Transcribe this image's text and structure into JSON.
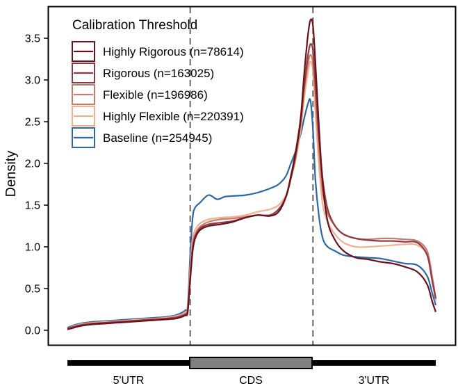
{
  "chart_data": {
    "type": "line",
    "ylabel": "Density",
    "xlabel": "",
    "xlim": [
      0,
      3
    ],
    "ylim": [
      -0.1,
      3.84
    ],
    "y_ticks": [
      0.0,
      0.5,
      1.0,
      1.5,
      2.0,
      2.5,
      3.0,
      3.5
    ],
    "y_tick_labels": [
      "0.0",
      "0.5",
      "1.0",
      "1.5",
      "2.0",
      "2.5",
      "3.0",
      "3.5"
    ],
    "vlines": [
      1,
      2
    ],
    "grid": false,
    "legend": {
      "title": "Calibration Threshold",
      "position": "top-left",
      "entries": [
        {
          "label": "Highly Rigorous (n=78614)",
          "color": "#6b0f1a"
        },
        {
          "label": "Rigorous (n=163025)",
          "color": "#8f3a3f"
        },
        {
          "label": "Flexible (n=196986)",
          "color": "#c77a6e"
        },
        {
          "label": "Highly Flexible (n=220391)",
          "color": "#f2b08f"
        },
        {
          "label": "Baseline (n=254945)",
          "color": "#2b66a8"
        }
      ]
    },
    "gene_model": {
      "regions": [
        "5'UTR",
        "CDS",
        "3'UTR"
      ],
      "cds_color": "#808080"
    },
    "series": [
      {
        "name": "Highly Rigorous (n=78614)",
        "color": "#6b0f1a",
        "x": [
          0.0,
          0.05,
          0.1,
          0.2,
          0.3,
          0.4,
          0.5,
          0.6,
          0.7,
          0.8,
          0.88,
          0.93,
          0.96,
          0.98,
          1.0,
          1.02,
          1.04,
          1.08,
          1.15,
          1.25,
          1.35,
          1.45,
          1.55,
          1.65,
          1.72,
          1.78,
          1.82,
          1.86,
          1.9,
          1.93,
          1.96,
          1.98,
          2.0,
          2.02,
          2.05,
          2.08,
          2.12,
          2.18,
          2.25,
          2.35,
          2.45,
          2.55,
          2.65,
          2.75,
          2.85,
          2.93,
          2.97,
          3.0
        ],
        "y": [
          0.01,
          0.03,
          0.05,
          0.07,
          0.08,
          0.09,
          0.1,
          0.11,
          0.12,
          0.13,
          0.14,
          0.16,
          0.18,
          0.22,
          0.6,
          0.95,
          1.1,
          1.2,
          1.25,
          1.27,
          1.3,
          1.35,
          1.38,
          1.37,
          1.42,
          1.6,
          1.85,
          2.15,
          2.55,
          3.1,
          3.55,
          3.72,
          3.65,
          3.2,
          2.4,
          1.75,
          1.3,
          1.08,
          0.95,
          0.87,
          0.85,
          0.82,
          0.8,
          0.76,
          0.7,
          0.55,
          0.35,
          0.22
        ]
      },
      {
        "name": "Rigorous (n=163025)",
        "color": "#8f3a3f",
        "x": [
          0.0,
          0.05,
          0.1,
          0.2,
          0.3,
          0.4,
          0.5,
          0.6,
          0.7,
          0.8,
          0.88,
          0.93,
          0.96,
          0.98,
          1.0,
          1.02,
          1.04,
          1.08,
          1.15,
          1.25,
          1.35,
          1.45,
          1.55,
          1.65,
          1.72,
          1.78,
          1.82,
          1.86,
          1.9,
          1.93,
          1.96,
          1.98,
          2.0,
          2.02,
          2.05,
          2.08,
          2.12,
          2.18,
          2.25,
          2.35,
          2.45,
          2.55,
          2.65,
          2.75,
          2.85,
          2.93,
          2.97,
          3.0
        ],
        "y": [
          0.02,
          0.04,
          0.06,
          0.08,
          0.09,
          0.1,
          0.11,
          0.12,
          0.13,
          0.14,
          0.15,
          0.17,
          0.19,
          0.24,
          0.62,
          0.97,
          1.12,
          1.22,
          1.27,
          1.29,
          1.31,
          1.35,
          1.38,
          1.38,
          1.45,
          1.6,
          1.82,
          2.1,
          2.5,
          2.95,
          3.3,
          3.43,
          3.35,
          2.95,
          2.3,
          1.8,
          1.45,
          1.25,
          1.15,
          1.1,
          1.08,
          1.07,
          1.07,
          1.06,
          1.05,
          0.9,
          0.6,
          0.38
        ]
      },
      {
        "name": "Flexible (n=196986)",
        "color": "#c77a6e",
        "x": [
          0.0,
          0.05,
          0.1,
          0.2,
          0.3,
          0.4,
          0.5,
          0.6,
          0.7,
          0.8,
          0.88,
          0.93,
          0.96,
          0.98,
          1.0,
          1.02,
          1.04,
          1.08,
          1.15,
          1.25,
          1.35,
          1.45,
          1.55,
          1.65,
          1.72,
          1.78,
          1.82,
          1.86,
          1.9,
          1.93,
          1.96,
          1.98,
          2.0,
          2.02,
          2.05,
          2.08,
          2.12,
          2.18,
          2.25,
          2.35,
          2.45,
          2.55,
          2.65,
          2.75,
          2.85,
          2.93,
          2.97,
          3.0
        ],
        "y": [
          0.02,
          0.04,
          0.06,
          0.08,
          0.09,
          0.1,
          0.11,
          0.12,
          0.13,
          0.14,
          0.16,
          0.18,
          0.2,
          0.26,
          0.68,
          1.02,
          1.15,
          1.24,
          1.3,
          1.33,
          1.34,
          1.36,
          1.38,
          1.38,
          1.45,
          1.6,
          1.82,
          2.1,
          2.5,
          2.9,
          3.2,
          3.3,
          3.2,
          2.8,
          2.15,
          1.65,
          1.4,
          1.25,
          1.15,
          1.1,
          1.09,
          1.1,
          1.1,
          1.09,
          1.07,
          0.95,
          0.65,
          0.38
        ]
      },
      {
        "name": "Highly Flexible (n=220391)",
        "color": "#f2b08f",
        "x": [
          0.0,
          0.05,
          0.1,
          0.2,
          0.3,
          0.4,
          0.5,
          0.6,
          0.7,
          0.8,
          0.88,
          0.93,
          0.96,
          0.98,
          1.0,
          1.02,
          1.04,
          1.08,
          1.15,
          1.25,
          1.35,
          1.45,
          1.55,
          1.65,
          1.72,
          1.78,
          1.82,
          1.86,
          1.9,
          1.93,
          1.96,
          1.98,
          2.0,
          2.02,
          2.05,
          2.08,
          2.12,
          2.18,
          2.25,
          2.35,
          2.45,
          2.55,
          2.65,
          2.75,
          2.85,
          2.93,
          2.97,
          3.0
        ],
        "y": [
          0.02,
          0.05,
          0.07,
          0.09,
          0.1,
          0.11,
          0.12,
          0.13,
          0.14,
          0.15,
          0.17,
          0.19,
          0.22,
          0.28,
          0.75,
          1.1,
          1.2,
          1.28,
          1.33,
          1.35,
          1.36,
          1.38,
          1.42,
          1.45,
          1.5,
          1.62,
          1.82,
          2.05,
          2.4,
          2.8,
          3.1,
          3.22,
          3.1,
          2.6,
          1.95,
          1.5,
          1.3,
          1.15,
          1.05,
          1.0,
          1.0,
          1.01,
          1.02,
          1.03,
          1.02,
          0.9,
          0.6,
          0.35
        ]
      },
      {
        "name": "Baseline (n=254945)",
        "color": "#2b66a8",
        "x": [
          0.0,
          0.05,
          0.1,
          0.2,
          0.3,
          0.4,
          0.5,
          0.6,
          0.7,
          0.8,
          0.88,
          0.93,
          0.96,
          0.98,
          1.0,
          1.02,
          1.04,
          1.08,
          1.15,
          1.22,
          1.28,
          1.35,
          1.45,
          1.55,
          1.65,
          1.72,
          1.78,
          1.82,
          1.86,
          1.9,
          1.93,
          1.96,
          1.98,
          2.0,
          2.02,
          2.05,
          2.08,
          2.12,
          2.18,
          2.25,
          2.35,
          2.45,
          2.55,
          2.65,
          2.75,
          2.85,
          2.93,
          2.97,
          3.0
        ],
        "y": [
          0.03,
          0.06,
          0.08,
          0.1,
          0.11,
          0.12,
          0.13,
          0.14,
          0.15,
          0.16,
          0.18,
          0.21,
          0.24,
          0.3,
          0.9,
          1.35,
          1.47,
          1.53,
          1.62,
          1.57,
          1.6,
          1.61,
          1.62,
          1.65,
          1.7,
          1.75,
          1.85,
          2.0,
          2.15,
          2.35,
          2.55,
          2.72,
          2.75,
          2.4,
          1.8,
          1.35,
          1.1,
          1.0,
          0.95,
          0.9,
          0.88,
          0.87,
          0.86,
          0.83,
          0.8,
          0.78,
          0.65,
          0.45,
          0.3
        ]
      }
    ]
  }
}
